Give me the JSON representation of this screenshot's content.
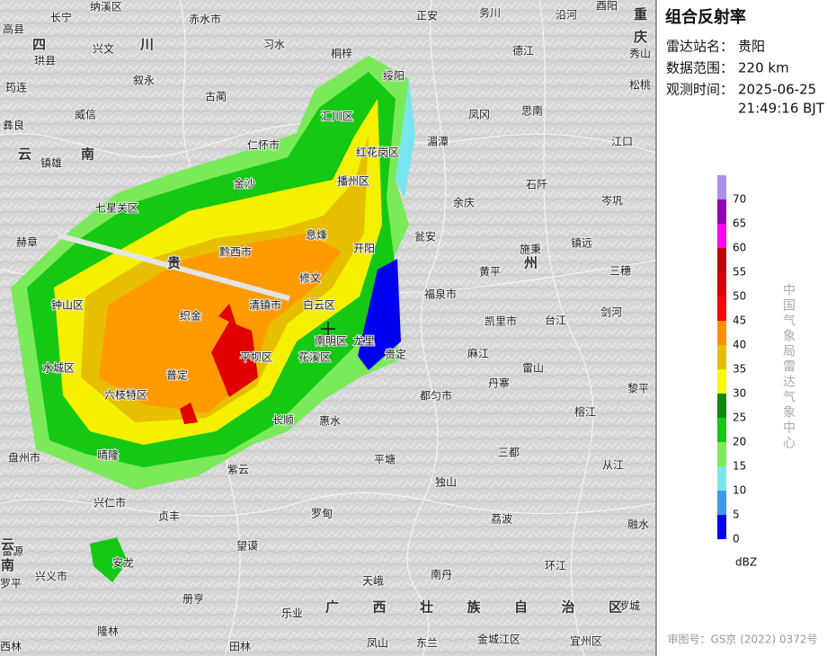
{
  "map": {
    "labels": [
      "长宁",
      "纳溪区",
      "赤水市",
      "正安",
      "务川",
      "沿河",
      "酉阳",
      "高县",
      "兴文",
      "习水",
      "德江",
      "秀山",
      "珙县",
      "叙永",
      "桐梓",
      "绥阳",
      "松桃",
      "筠连",
      "古蔺",
      "威信",
      "凤冈",
      "思南",
      "彝良",
      "汇川区",
      "湄潭",
      "江口",
      "镇雄",
      "仁怀市",
      "红花岗区",
      "金沙",
      "播州区",
      "石阡",
      "七星关区",
      "余庆",
      "岑巩",
      "赫章",
      "黔西市",
      "息烽",
      "开阳",
      "瓮安",
      "镇远",
      "黄平",
      "施秉",
      "三穗",
      "修文",
      "福泉市",
      "钟山区",
      "织金",
      "清镇市",
      "白云区",
      "凯里市",
      "剑河",
      "南明区",
      "龙里",
      "麻江",
      "台江",
      "水城区",
      "平坝区",
      "花溪区",
      "贵定",
      "雷山",
      "黎平",
      "六枝特区",
      "普定",
      "丹寨",
      "都匀市",
      "榕江",
      "长顺",
      "惠水",
      "三都",
      "盘州市",
      "晴隆",
      "紫云",
      "平塘",
      "从江",
      "兴仁市",
      "独山",
      "贞丰",
      "罗甸",
      "荔波",
      "融水",
      "富源",
      "安龙",
      "望谟",
      "兴义市",
      "南丹",
      "环江",
      "天峨",
      "罗平",
      "册亨",
      "乐业",
      "罗城",
      "隆林",
      "田林",
      "凤山",
      "东兰",
      "金城江区",
      "宜州区",
      "西林"
    ],
    "provinces": [
      "四川",
      "云南",
      "重庆",
      "贵州",
      "广西壮族自治区",
      "云南"
    ]
  },
  "panel": {
    "title": "组合反射率",
    "rows": [
      {
        "label": "雷达站名：",
        "value": [
          "贵阳"
        ]
      },
      {
        "label": "数据范围：",
        "value": [
          "220 km"
        ]
      },
      {
        "label": "观测时间：",
        "value": [
          "2025-06-25",
          "21:49:16 BJT"
        ]
      }
    ]
  },
  "legend": {
    "unit": "dBZ",
    "levels": [
      {
        "value": 0,
        "color": "#0000f6"
      },
      {
        "value": 5,
        "color": "#3c9be8"
      },
      {
        "value": 10,
        "color": "#78e6f0"
      },
      {
        "value": 15,
        "color": "#7aea5a"
      },
      {
        "value": 20,
        "color": "#14c814"
      },
      {
        "value": 25,
        "color": "#0a8c0a"
      },
      {
        "value": 30,
        "color": "#fafa00"
      },
      {
        "value": 35,
        "color": "#e6c000"
      },
      {
        "value": 40,
        "color": "#ff9000"
      },
      {
        "value": 45,
        "color": "#ff0000"
      },
      {
        "value": 50,
        "color": "#d60000"
      },
      {
        "value": 55,
        "color": "#c00000"
      },
      {
        "value": 60,
        "color": "#ff00f0"
      },
      {
        "value": 65,
        "color": "#9600b4"
      },
      {
        "value": 70,
        "color": "#ad90f0"
      }
    ]
  },
  "credit": "中国气象局雷达气象中心",
  "approval": "审图号：GS京 (2022) 0372号"
}
